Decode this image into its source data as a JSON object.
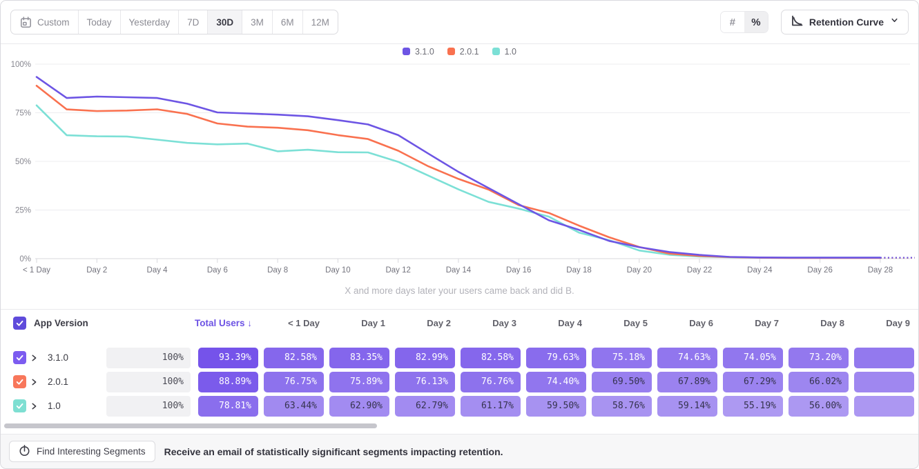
{
  "toolbar": {
    "date_ranges": [
      "Custom",
      "Today",
      "Yesterday",
      "7D",
      "30D",
      "3M",
      "6M",
      "12M"
    ],
    "selected_range": "30D",
    "value_modes": [
      {
        "name": "absolute-numbers",
        "glyph": "#"
      },
      {
        "name": "percent",
        "glyph": "%"
      }
    ],
    "selected_mode": "percent",
    "view_dropdown": {
      "label": "Retention Curve"
    }
  },
  "chart": {
    "subtitle": "X and more days later your users came back and did B."
  },
  "chart_data": {
    "type": "line",
    "title": "Retention Curve",
    "x_unit": "days since first use",
    "x_days": [
      0,
      1,
      2,
      3,
      4,
      5,
      6,
      7,
      8,
      9,
      10,
      11,
      12,
      13,
      14,
      15,
      16,
      17,
      18,
      19,
      20,
      21,
      22,
      23,
      24,
      25,
      26,
      27,
      28
    ],
    "xtick_days": [
      0,
      2,
      4,
      6,
      8,
      10,
      12,
      14,
      16,
      18,
      20,
      22,
      24,
      26,
      28
    ],
    "xtick_labels": [
      "< 1 Day",
      "Day 2",
      "Day 4",
      "Day 6",
      "Day 8",
      "Day 10",
      "Day 12",
      "Day 14",
      "Day 16",
      "Day 18",
      "Day 20",
      "Day 22",
      "Day 24",
      "Day 26",
      "Day 28"
    ],
    "ytick_labels": [
      "0%",
      "25%",
      "50%",
      "75%",
      "100%"
    ],
    "ylim": [
      0,
      100
    ],
    "grid": "horizontal",
    "legend_position": "top-center",
    "incomplete_tail_dashed": true,
    "series": [
      {
        "name": "3.1.0",
        "color": "#6D55E4",
        "values": [
          93.39,
          82.58,
          83.35,
          82.99,
          82.58,
          79.63,
          75.18,
          74.63,
          74.05,
          73.2,
          71.2,
          69.0,
          63.5,
          54.0,
          44.6,
          36.3,
          28.0,
          19.7,
          14.8,
          9.1,
          5.9,
          3.4,
          1.9,
          0.9,
          0.6,
          0.5,
          0.5,
          0.5,
          0.5
        ]
      },
      {
        "name": "2.0.1",
        "color": "#F9714F",
        "values": [
          88.89,
          76.75,
          75.89,
          76.13,
          76.76,
          74.4,
          69.5,
          67.89,
          67.29,
          66.02,
          63.5,
          61.5,
          55.5,
          47.5,
          41.0,
          35.5,
          27.5,
          23.5,
          17.0,
          11.0,
          6.0,
          2.6,
          1.4,
          0.8,
          0.5,
          0.4,
          0.4,
          0.4,
          0.4
        ]
      },
      {
        "name": "1.0",
        "color": "#7CE0D6",
        "values": [
          78.81,
          63.44,
          62.9,
          62.79,
          61.17,
          59.5,
          58.76,
          59.14,
          55.19,
          56.0,
          54.7,
          54.6,
          49.8,
          42.7,
          35.6,
          29.2,
          25.7,
          21.6,
          13.4,
          9.5,
          4.2,
          2.0,
          1.1,
          0.7,
          0.5,
          0.5,
          0.5,
          0.5,
          0.5
        ]
      }
    ]
  },
  "table": {
    "select_all_checked": true,
    "columns": [
      "App Version",
      "Total Users",
      "< 1 Day",
      "Day 1",
      "Day 2",
      "Day 3",
      "Day 4",
      "Day 5",
      "Day 6",
      "Day 7",
      "Day 8",
      "Day 9"
    ],
    "sort_column": "Total Users",
    "sort_direction": "↓",
    "rows": [
      {
        "version": "3.1.0",
        "checkbox_color": "#7C5CF0",
        "checked": true,
        "total": "100%",
        "cells": [
          93.39,
          82.58,
          83.35,
          82.99,
          82.58,
          79.63,
          75.18,
          74.63,
          74.05,
          73.2
        ],
        "edge_color": "#9379EE"
      },
      {
        "version": "2.0.1",
        "checkbox_color": "#F8775B",
        "checked": true,
        "total": "100%",
        "cells": [
          88.89,
          76.75,
          75.89,
          76.13,
          76.76,
          74.4,
          69.5,
          67.89,
          67.29,
          66.02
        ],
        "edge_color": "#9F87F0"
      },
      {
        "version": "1.0",
        "checkbox_color": "#7EDFD2",
        "checked": true,
        "total": "100%",
        "cells": [
          78.81,
          63.44,
          62.9,
          62.79,
          61.17,
          59.5,
          58.76,
          59.14,
          55.19,
          56.0
        ],
        "edge_color": "#AC97F2"
      }
    ]
  },
  "footer": {
    "button": "Find Interesting Segments",
    "message": "Receive an email of statistically significant segments impacting retention."
  },
  "colors": {
    "accent_purple": "#6C52E4",
    "cell_base_purple": "#6B47E8",
    "header_checkbox": "#5F4BDB",
    "gridline": "#ECECEF",
    "axis": "#D8D8DD"
  }
}
